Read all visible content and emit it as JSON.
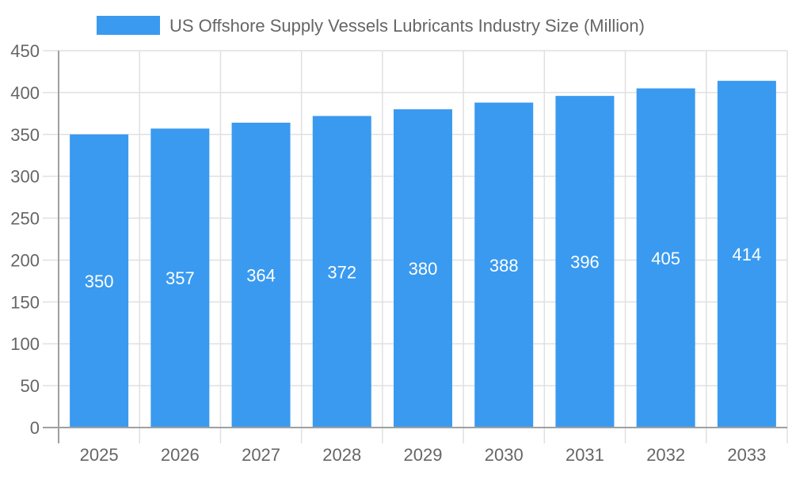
{
  "chart_data": {
    "type": "bar",
    "title": "",
    "xlabel": "",
    "ylabel": "",
    "categories": [
      "2025",
      "2026",
      "2027",
      "2028",
      "2029",
      "2030",
      "2031",
      "2032",
      "2033"
    ],
    "series": [
      {
        "name": "US Offshore Supply Vessels Lubricants Industry Size (Million)",
        "values": [
          350,
          357,
          364,
          372,
          380,
          388,
          396,
          405,
          414
        ]
      }
    ],
    "ylim": [
      0,
      450
    ],
    "yticks": [
      0,
      50,
      100,
      150,
      200,
      250,
      300,
      350,
      400,
      450
    ],
    "grid": true,
    "legend": "top",
    "data_labels": true,
    "colors": {
      "bar": "#3a9af0",
      "grid": "#e0e0e0",
      "axis": "#a0a0a0",
      "text": "#666666",
      "label": "#ffffff"
    }
  }
}
